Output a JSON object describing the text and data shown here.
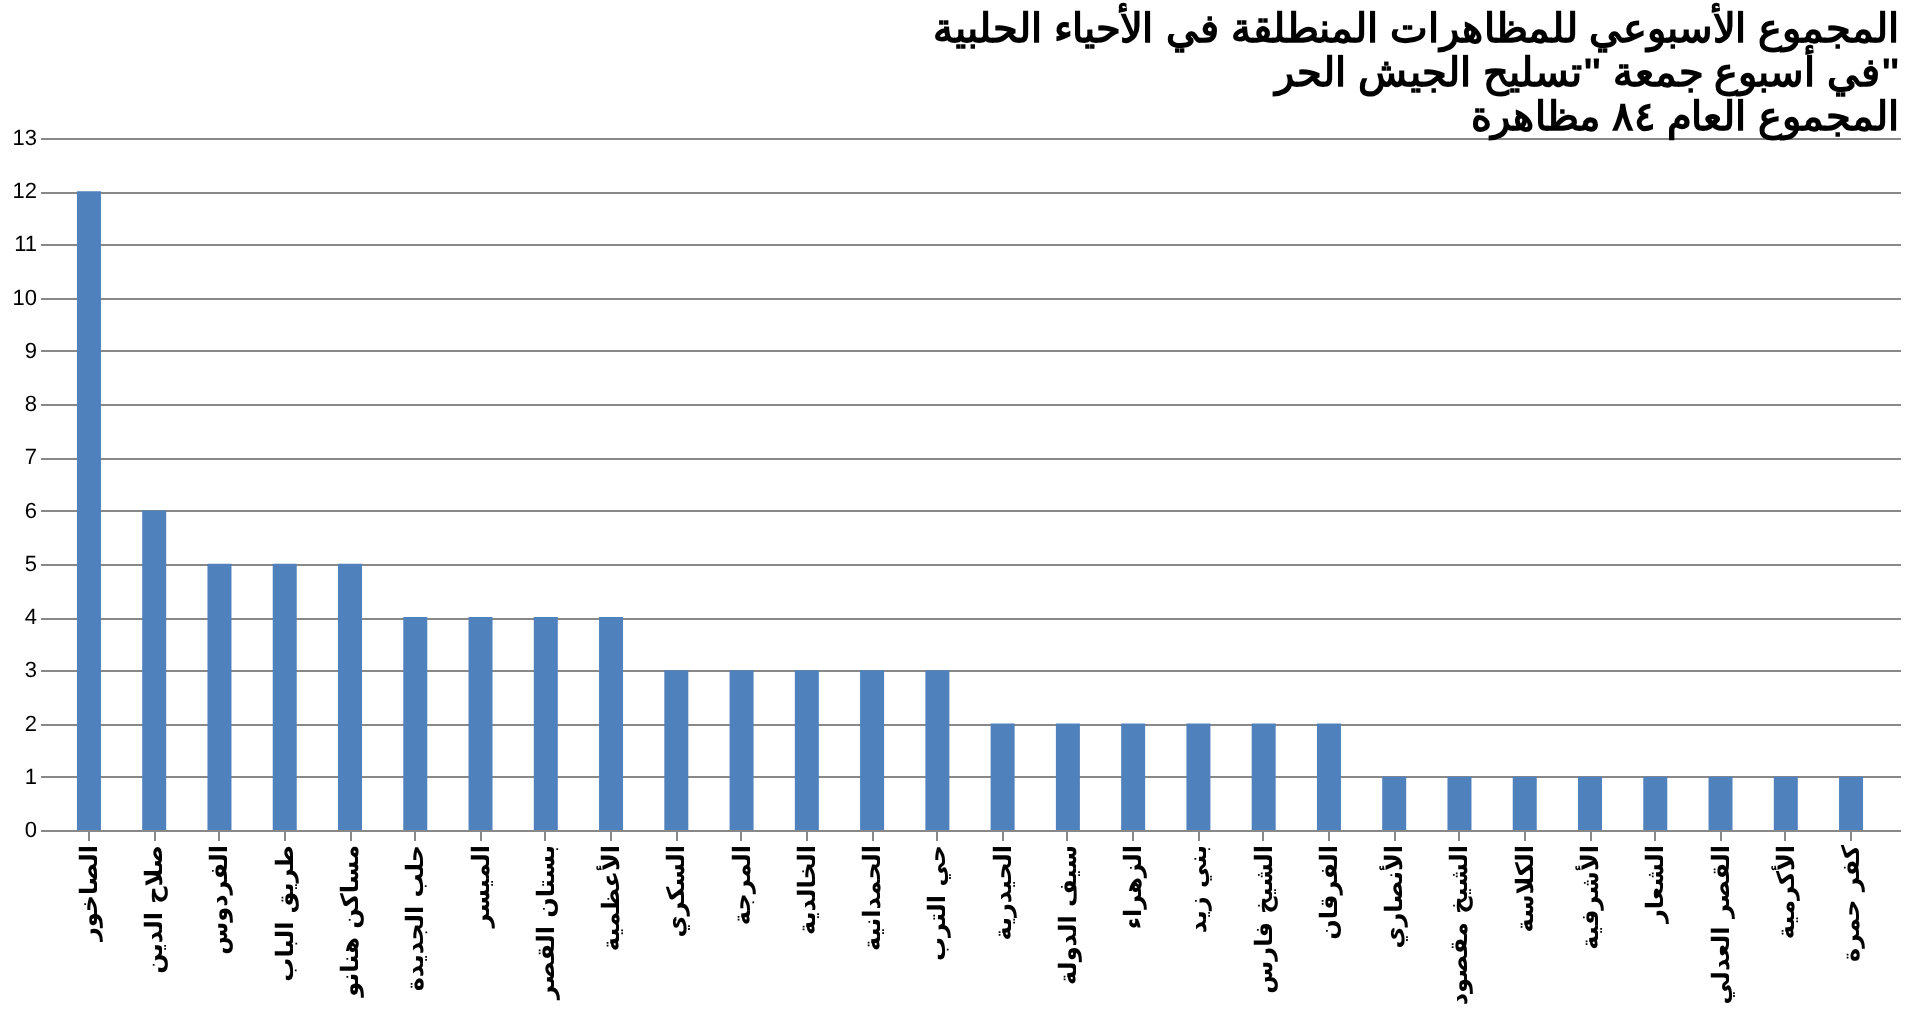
{
  "chart_data": {
    "type": "bar",
    "title": [
      "المجموع الأسبوعي للمظاهرات المنطلقة في الأحياء الحلبية",
      "في أسبوع جمعة \"تسليح الجيش الحر\"",
      "المجموع العام ٨٤ مظاهرة"
    ],
    "categories": [
      "الصاخور",
      "صلاح الدين",
      "الفردوس",
      "طريق الباب",
      "مساكن هنانو",
      "حلب الجديدة",
      "الميسر",
      "بستان القصر",
      "الأعظمية",
      "السكري",
      "المرجة",
      "الخالدية",
      "الحمدانية",
      "حي الترب",
      "الحيدرية",
      "سيف الدولة",
      "الزهراء",
      "بني زيد",
      "الشيخ فارس",
      "الفرقان",
      "الأنصاري",
      "الشيخ مقصود",
      "الكلاسة",
      "الأشرفية",
      "الشعار",
      "القصر العدلي",
      "الأكرمية",
      "كفر حمرة"
    ],
    "values": [
      12,
      6,
      5,
      5,
      5,
      4,
      4,
      4,
      4,
      3,
      3,
      3,
      3,
      3,
      2,
      2,
      2,
      2,
      2,
      2,
      1,
      1,
      1,
      1,
      1,
      1,
      1,
      1
    ],
    "color": "#4f81bd",
    "ylim": [
      0,
      13
    ],
    "yticks": [
      0,
      1,
      2,
      3,
      4,
      5,
      6,
      7,
      8,
      9,
      10,
      11,
      12,
      13
    ],
    "grid": "y"
  }
}
